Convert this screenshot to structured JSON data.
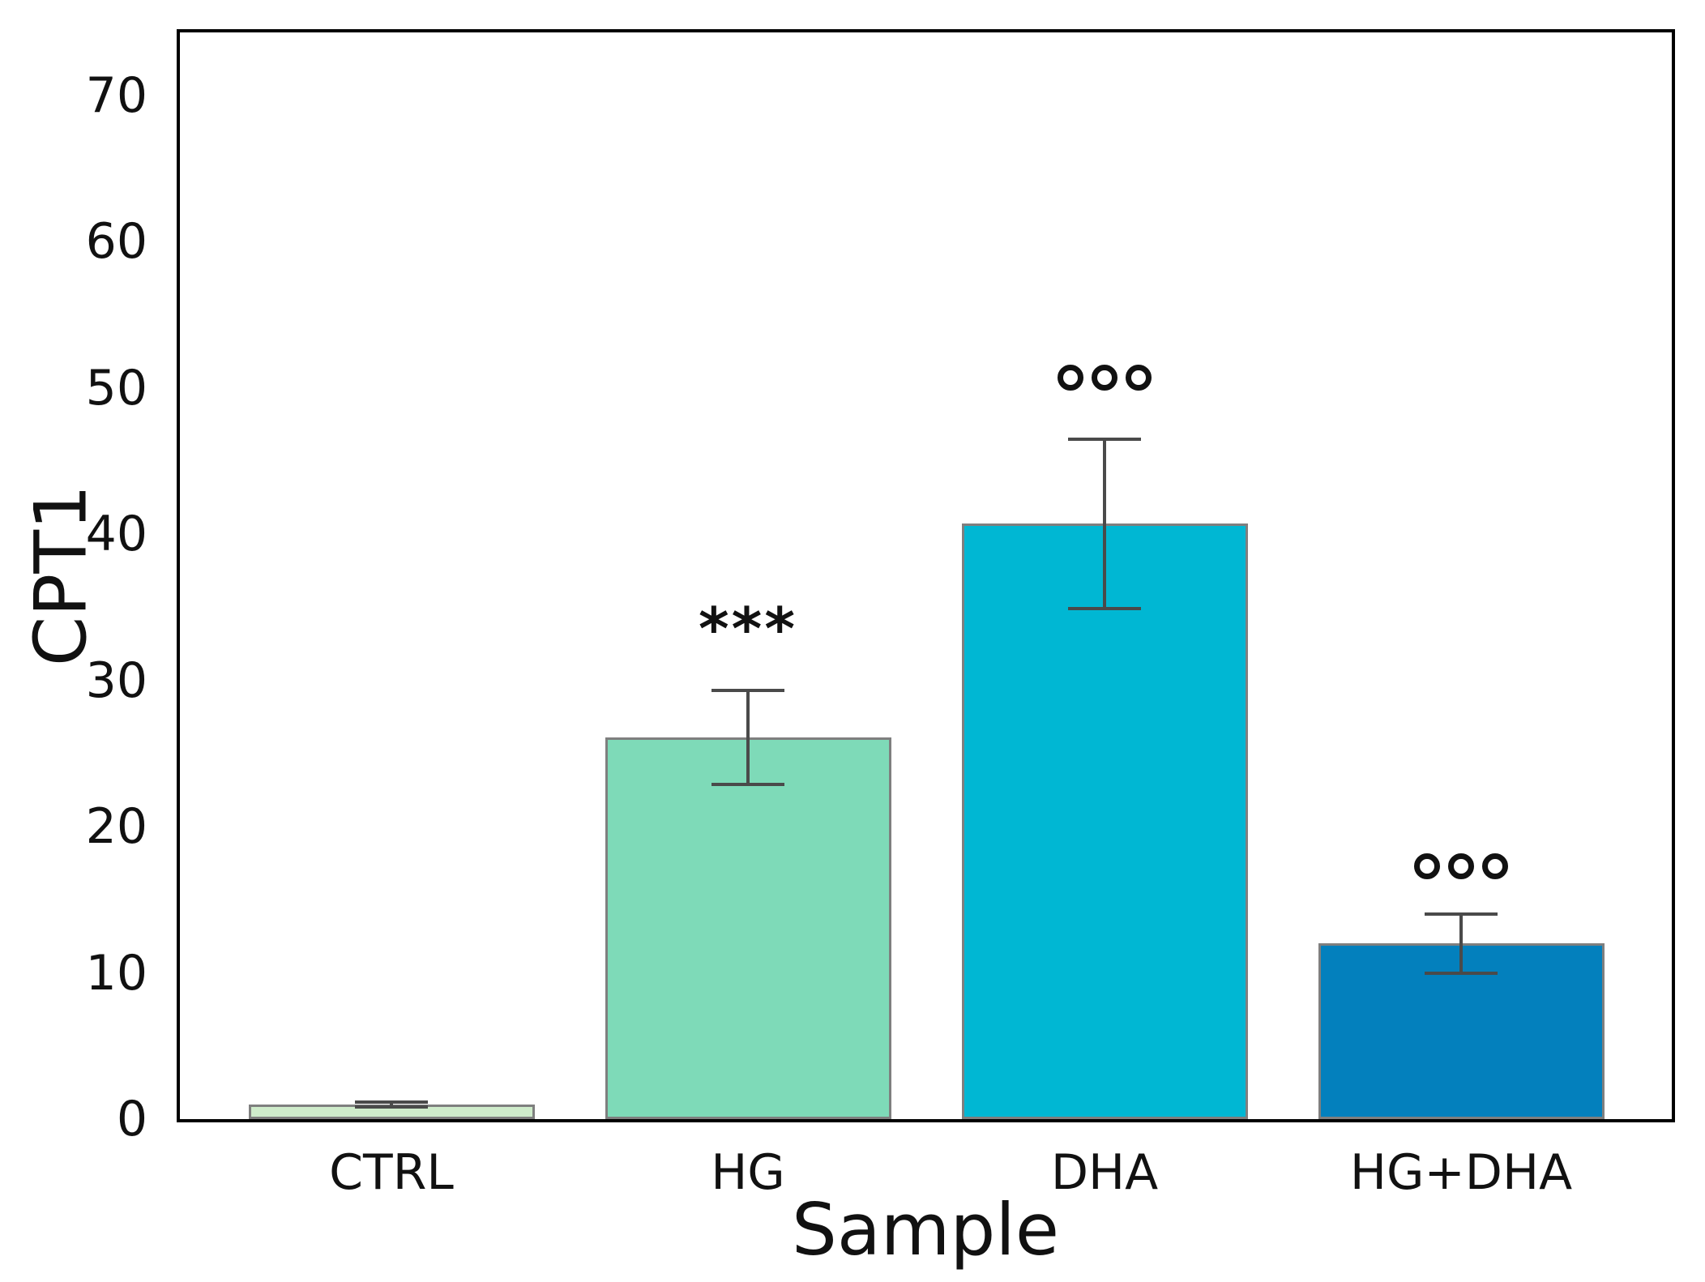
{
  "figure": {
    "background": "#ffffff",
    "frame_color": "#000000",
    "text_color": "#111111"
  },
  "chart_data": {
    "type": "bar",
    "title": "",
    "xlabel": "Sample",
    "ylabel": "CPT1",
    "categories": [
      "CTRL",
      "HG",
      "DHA",
      "HG+DHA"
    ],
    "values": [
      1.0,
      26.1,
      40.7,
      12.0
    ],
    "errors": [
      0.15,
      3.2,
      5.8,
      2.0
    ],
    "bar_colors": [
      "#cfeccb",
      "#7edab8",
      "#00b7d3",
      "#0380bd"
    ],
    "bar_edge_color": "#7f7f7f",
    "error_bar_color": "#4a4a4a",
    "yticks": [
      0,
      10,
      20,
      30,
      40,
      50,
      60,
      70
    ],
    "ylim": [
      0,
      74.3
    ],
    "grid": false,
    "legend": null,
    "annotations": [
      {
        "x": "HG",
        "y": 34.1,
        "text": "***",
        "style": "asterisks"
      },
      {
        "x": "DHA",
        "y": 50.7,
        "text": "ooo",
        "style": "rings"
      },
      {
        "x": "HG+DHA",
        "y": 17.3,
        "text": "ooo",
        "style": "rings"
      }
    ]
  }
}
